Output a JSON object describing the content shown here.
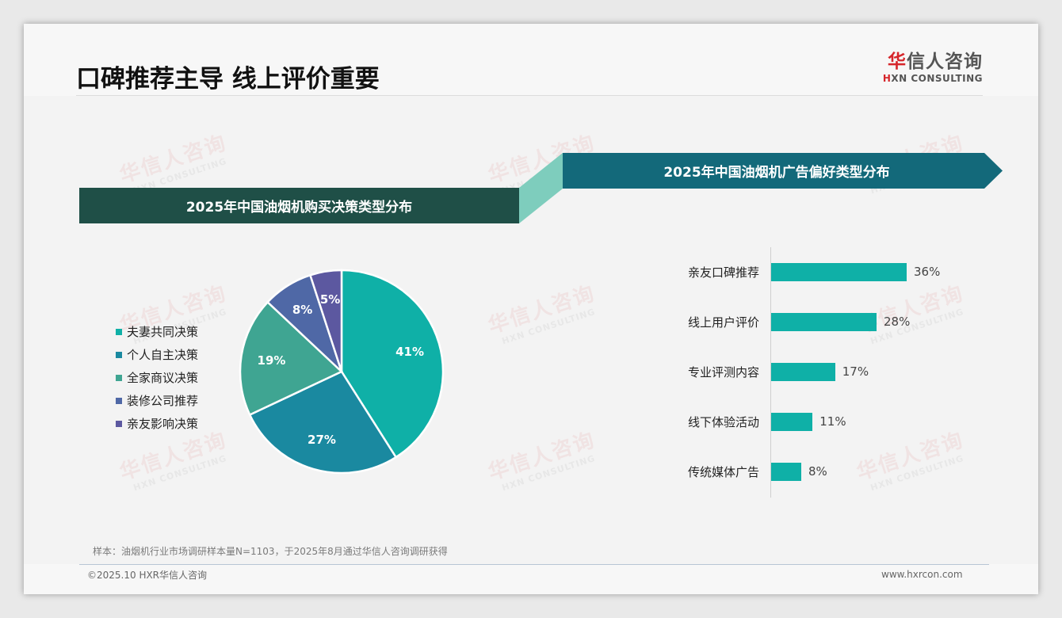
{
  "header": {
    "title": "口碑推荐主导 线上评价重要",
    "logo_cn_first": "华",
    "logo_cn_rest": "信人咨询",
    "logo_en_mark": "H",
    "logo_en_rest": "XN CONSULTING"
  },
  "watermark": {
    "cn": "华信人咨询",
    "en": "HXN CONSULTING"
  },
  "banners": {
    "left": "2025年中国油烟机购买决策类型分布",
    "right": "2025年中国油烟机广告偏好类型分布"
  },
  "colors": {
    "banner_left": "#1f4f47",
    "banner_right": "#13697a",
    "connector": "#7ecdbd",
    "bar": "#0fb0a7"
  },
  "chart_data": [
    {
      "type": "pie",
      "title": "2025年中国油烟机购买决策类型分布",
      "categories": [
        "夫妻共同决策",
        "个人自主决策",
        "全家商议决策",
        "装修公司推荐",
        "亲友影响决策"
      ],
      "values": [
        41,
        27,
        19,
        8,
        5
      ],
      "labels": [
        "41%",
        "27%",
        "19%",
        "8%",
        "5%"
      ],
      "colors": [
        "#0fb0a7",
        "#1a89a0",
        "#3fa592",
        "#4f68a6",
        "#5c58a0"
      ],
      "legend_position": "left"
    },
    {
      "type": "bar",
      "orientation": "horizontal",
      "title": "2025年中国油烟机广告偏好类型分布",
      "categories": [
        "亲友口碑推荐",
        "线上用户评价",
        "专业评测内容",
        "线下体验活动",
        "传统媒体广告"
      ],
      "values": [
        36,
        28,
        17,
        11,
        8
      ],
      "labels": [
        "36%",
        "28%",
        "17%",
        "11%",
        "8%"
      ],
      "xlabel": "",
      "ylabel": "",
      "grid": false
    }
  ],
  "pie": {
    "legend": [
      {
        "label": "夫妻共同决策",
        "color": "#0fb0a7"
      },
      {
        "label": "个人自主决策",
        "color": "#1a89a0"
      },
      {
        "label": "全家商议决策",
        "color": "#3fa592"
      },
      {
        "label": "装修公司推荐",
        "color": "#4f68a6"
      },
      {
        "label": "亲友影响决策",
        "color": "#5c58a0"
      }
    ]
  },
  "bars": {
    "items": [
      {
        "label": "亲友口碑推荐",
        "value": 36,
        "text": "36%"
      },
      {
        "label": "线上用户评价",
        "value": 28,
        "text": "28%"
      },
      {
        "label": "专业评测内容",
        "value": 17,
        "text": "17%"
      },
      {
        "label": "线下体验活动",
        "value": 11,
        "text": "11%"
      },
      {
        "label": "传统媒体广告",
        "value": 8,
        "text": "8%"
      }
    ]
  },
  "footer": {
    "note": "样本：油烟机行业市场调研样本量N=1103，于2025年8月通过华信人咨询调研获得",
    "copyright": "©2025.10 HXR华信人咨询",
    "website": "www.hxrcon.com"
  }
}
